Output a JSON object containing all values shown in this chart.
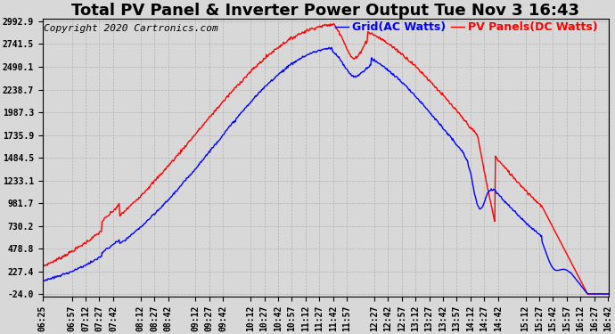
{
  "title": "Total PV Panel & Inverter Power Output Tue Nov 3 16:43",
  "copyright_text": "Copyright 2020 Cartronics.com",
  "legend_grid": "Grid(AC Watts)",
  "legend_pv": "PV Panels(DC Watts)",
  "grid_line_color": "blue",
  "pv_line_color": "red",
  "background_color": "#d8d8d8",
  "plot_bg_color": "#d8d8d8",
  "ytick_labels": [
    "2992.9",
    "2741.5",
    "2490.1",
    "2238.7",
    "1987.3",
    "1735.9",
    "1484.5",
    "1233.1",
    "981.7",
    "730.2",
    "478.8",
    "227.4",
    "-24.0"
  ],
  "ytick_values": [
    2992.9,
    2741.5,
    2490.1,
    2238.7,
    1987.3,
    1735.9,
    1484.5,
    1233.1,
    981.7,
    730.2,
    478.8,
    227.4,
    -24.0
  ],
  "ymin": -24.0,
  "ymax": 2992.9,
  "xtick_labels": [
    "06:25",
    "06:57",
    "07:12",
    "07:27",
    "07:42",
    "08:12",
    "08:27",
    "08:42",
    "09:12",
    "09:27",
    "09:42",
    "10:12",
    "10:27",
    "10:42",
    "10:57",
    "11:12",
    "11:27",
    "11:42",
    "11:57",
    "12:27",
    "12:42",
    "12:57",
    "13:12",
    "13:27",
    "13:42",
    "13:57",
    "14:12",
    "14:27",
    "14:42",
    "15:12",
    "15:27",
    "15:42",
    "15:57",
    "16:12",
    "16:27",
    "16:42"
  ],
  "title_fontsize": 13,
  "copyright_fontsize": 8,
  "legend_fontsize": 9,
  "tick_fontsize": 7,
  "line_width": 1.0
}
